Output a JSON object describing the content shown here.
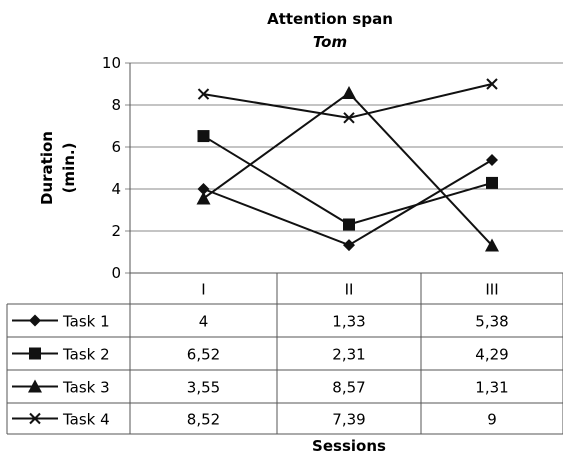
{
  "chart_data": {
    "type": "line",
    "title": "Attention span",
    "subtitle": "Tom",
    "ylabel": [
      "Duration",
      "(min.)"
    ],
    "xlabel": "Sessions",
    "categories": [
      "I",
      "II",
      "III"
    ],
    "ylim": [
      0,
      10
    ],
    "yticks": [
      "0",
      "2",
      "4",
      "6",
      "8",
      "10"
    ],
    "grid": true,
    "legend": "data-table",
    "series": [
      {
        "name": "Task 1",
        "marker": "diamond",
        "values": [
          4,
          1.33,
          5.38
        ],
        "labels": [
          "4",
          "1,33",
          "5,38"
        ]
      },
      {
        "name": "Task 2",
        "marker": "square",
        "values": [
          6.52,
          2.31,
          4.29
        ],
        "labels": [
          "6,52",
          "2,31",
          "4,29"
        ]
      },
      {
        "name": "Task 3",
        "marker": "triangle",
        "values": [
          3.55,
          8.57,
          1.31
        ],
        "labels": [
          "3,55",
          "8,57",
          "1,31"
        ]
      },
      {
        "name": "Task 4",
        "marker": "x",
        "values": [
          8.52,
          7.39,
          9
        ],
        "labels": [
          "8,52",
          "7,39",
          "9"
        ]
      }
    ]
  }
}
